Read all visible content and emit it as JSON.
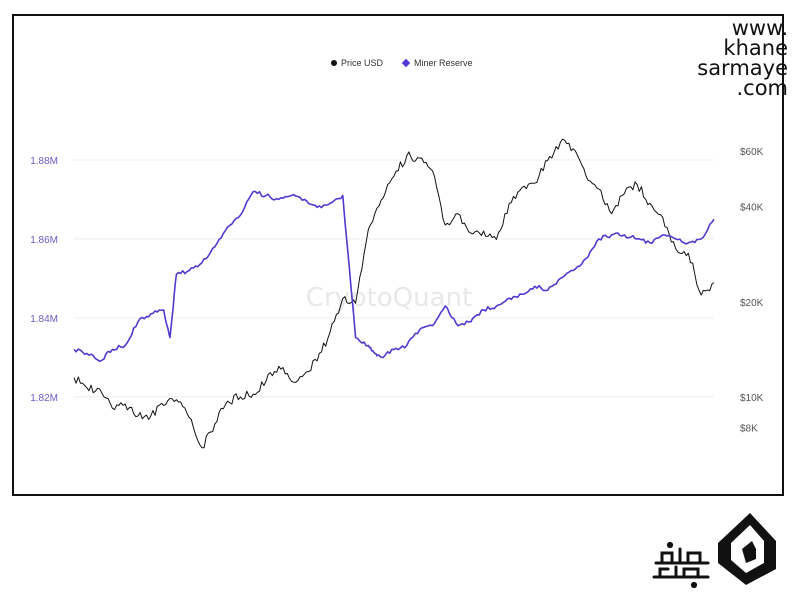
{
  "logo": {
    "lines": [
      "www.",
      "khane",
      "sarmaye",
      ".com"
    ]
  },
  "watermark": "CryptoQuant",
  "chart_data": {
    "type": "line",
    "title": "",
    "legend": {
      "placement": "top-center",
      "items": [
        {
          "label": "Price USD",
          "marker": "dot",
          "color": "#111111"
        },
        {
          "label": "Miner Reserve",
          "marker": "diamond",
          "color": "#4f3bd0"
        }
      ]
    },
    "grid": true,
    "x": {
      "type": "time",
      "range": [
        0,
        1
      ],
      "tick_labels": []
    },
    "y_left": {
      "label": "",
      "scale": "linear",
      "range": [
        1.805,
        1.9
      ],
      "ticks": [
        1.82,
        1.84,
        1.86,
        1.88
      ],
      "tick_labels": [
        "1.82M",
        "1.84M",
        "1.86M",
        "1.88M"
      ],
      "color": "#6a5cc7"
    },
    "y_right": {
      "label": "",
      "scale": "log",
      "range": [
        6500,
        100000
      ],
      "ticks": [
        8000,
        10000,
        20000,
        40000,
        60000
      ],
      "tick_labels": [
        "$8K",
        "$10K",
        "$20K",
        "$40K",
        "$60K"
      ],
      "color": "#555555"
    },
    "series": [
      {
        "name": "Price USD",
        "axis": "right",
        "color": "#111111",
        "x": [
          0.0,
          0.02,
          0.04,
          0.06,
          0.08,
          0.1,
          0.12,
          0.14,
          0.16,
          0.18,
          0.2,
          0.22,
          0.24,
          0.26,
          0.28,
          0.3,
          0.32,
          0.34,
          0.36,
          0.38,
          0.4,
          0.42,
          0.44,
          0.46,
          0.48,
          0.5,
          0.52,
          0.54,
          0.56,
          0.58,
          0.6,
          0.62,
          0.64,
          0.66,
          0.68,
          0.7,
          0.72,
          0.74,
          0.76,
          0.78,
          0.8,
          0.82,
          0.84,
          0.86,
          0.88,
          0.9,
          0.92,
          0.94,
          0.96,
          0.98,
          1.0
        ],
        "values": [
          11500,
          10700,
          10600,
          9200,
          9500,
          8700,
          8700,
          9400,
          9800,
          8600,
          6900,
          8200,
          9700,
          10000,
          10200,
          11200,
          12500,
          11200,
          11800,
          13000,
          16000,
          20500,
          19800,
          34000,
          42000,
          50000,
          58000,
          57000,
          52000,
          35000,
          38000,
          33000,
          33500,
          31500,
          41000,
          46000,
          47500,
          56000,
          64000,
          61000,
          50000,
          45500,
          38000,
          44000,
          47000,
          41000,
          37000,
          29500,
          28500,
          21000,
          23000
        ]
      },
      {
        "name": "Miner Reserve",
        "axis": "left",
        "color": "#4f3bd0",
        "x": [
          0.0,
          0.02,
          0.04,
          0.06,
          0.08,
          0.1,
          0.12,
          0.14,
          0.15,
          0.16,
          0.18,
          0.2,
          0.22,
          0.24,
          0.26,
          0.28,
          0.3,
          0.32,
          0.34,
          0.36,
          0.38,
          0.4,
          0.42,
          0.44,
          0.46,
          0.47,
          0.48,
          0.5,
          0.52,
          0.54,
          0.56,
          0.58,
          0.6,
          0.62,
          0.64,
          0.66,
          0.68,
          0.7,
          0.72,
          0.74,
          0.76,
          0.78,
          0.8,
          0.82,
          0.84,
          0.86,
          0.88,
          0.9,
          0.92,
          0.94,
          0.96,
          0.98,
          1.0
        ],
        "values": [
          1.832,
          1.831,
          1.829,
          1.832,
          1.833,
          1.839,
          1.841,
          1.842,
          1.835,
          1.851,
          1.852,
          1.854,
          1.858,
          1.863,
          1.866,
          1.872,
          1.871,
          1.87,
          1.871,
          1.87,
          1.868,
          1.869,
          1.871,
          1.835,
          1.833,
          1.831,
          1.83,
          1.832,
          1.833,
          1.837,
          1.838,
          1.843,
          1.838,
          1.839,
          1.842,
          1.843,
          1.845,
          1.846,
          1.848,
          1.847,
          1.85,
          1.852,
          1.855,
          1.86,
          1.861,
          1.861,
          1.86,
          1.859,
          1.861,
          1.86,
          1.859,
          1.86,
          1.865
        ]
      }
    ]
  }
}
